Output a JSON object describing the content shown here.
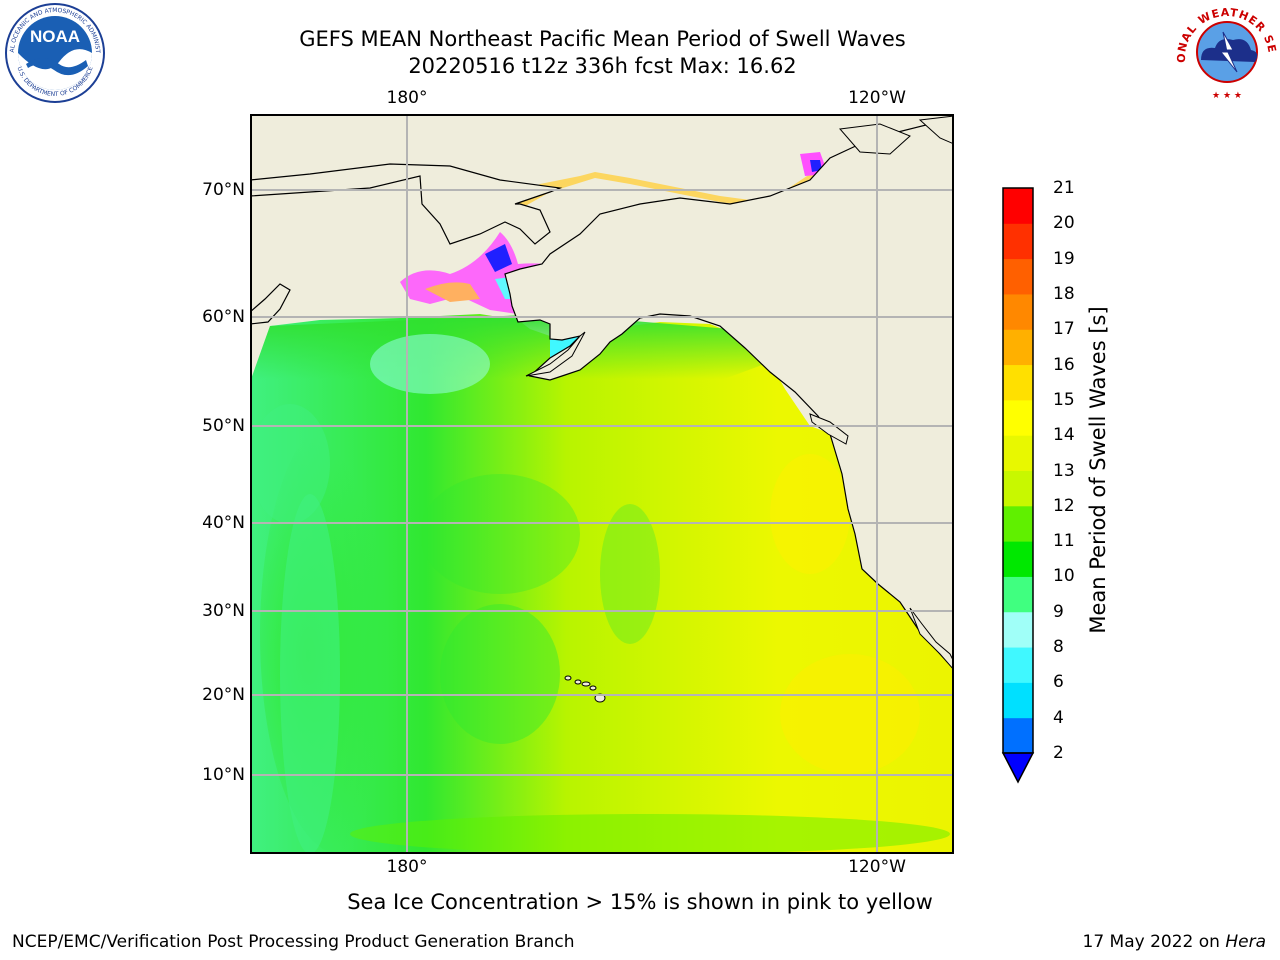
{
  "title_line1": "GEFS MEAN Northeast Pacific Mean Period of Swell Waves",
  "title_line2": "20220516 t12z 336h fcst   Max: 16.62",
  "noaa_logo": {
    "name": "NOAA",
    "ring_text": "NATIONAL OCEANIC AND ATMOSPHERIC ADMINISTRATION",
    "bottom_text": "U.S. DEPARTMENT OF COMMERCE"
  },
  "nws_logo": {
    "ring_text": "NATIONAL WEATHER SERVICE"
  },
  "map": {
    "lon_top": [
      "180°",
      "120°W"
    ],
    "lon_bottom": [
      "180°",
      "120°W"
    ],
    "lat_labels": [
      "70°N",
      "60°N",
      "50°N",
      "40°N",
      "30°N",
      "20°N",
      "10°N"
    ],
    "gridlines": true,
    "land_color": "#efeddc",
    "ice_note_colors": [
      "#ff44ff",
      "#ffff00"
    ]
  },
  "colorbar": {
    "label": "Mean Period of Swell Waves [s]",
    "ticks": [
      "21",
      "20",
      "19",
      "18",
      "17",
      "16",
      "15",
      "14",
      "13",
      "12",
      "11",
      "10",
      "9",
      "8",
      "6",
      "4",
      "2"
    ],
    "levels": [
      2,
      4,
      6,
      8,
      9,
      10,
      11,
      12,
      13,
      14,
      15,
      16,
      17,
      18,
      19,
      20,
      21
    ],
    "colors": [
      "#0070ff",
      "#00e0ff",
      "#40f8ff",
      "#a0fff8",
      "#40ff80",
      "#00e800",
      "#60f000",
      "#c8f800",
      "#e8f800",
      "#ffff00",
      "#ffe000",
      "#ffb000",
      "#ff8800",
      "#ff6000",
      "#ff3000",
      "#ff0000"
    ],
    "under_color": "#0000ff",
    "extend": "min"
  },
  "note": "Sea Ice Concentration > 15% is shown in pink to yellow",
  "footer_left": "NCEP/EMC/Verification Post Processing Product Generation Branch",
  "footer_right_prefix": "17 May 2022 on ",
  "footer_right_host": "Hera"
}
